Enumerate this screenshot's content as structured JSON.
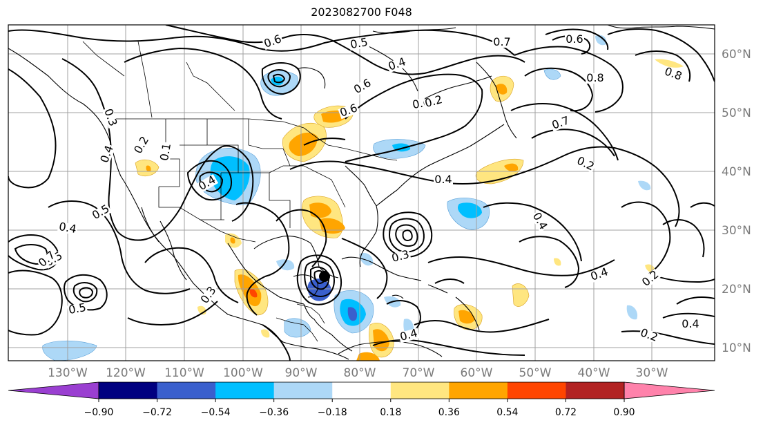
{
  "title": "2023082700 F048",
  "map": {
    "lon_labels": [
      "130°W",
      "120°W",
      "110°W",
      "100°W",
      "90°W",
      "80°W",
      "70°W",
      "60°W",
      "50°W",
      "40°W",
      "30°W"
    ],
    "lat_labels": [
      "60°N",
      "50°N",
      "40°N",
      "30°N",
      "20°N",
      "10°N"
    ],
    "contour_labels": [
      "0.6",
      "0.5",
      "0.4",
      "0.6",
      "0.7",
      "0.6",
      "0.8",
      "0.2",
      "0.8",
      "0.7",
      "0.2",
      "0.3",
      "0.4",
      "0.6",
      "0.1",
      "0.4",
      "0.5",
      "0.4",
      "0.5",
      "0.5",
      "0.3",
      "0.4",
      "0.2",
      "0.4",
      "0.4",
      "0.3",
      "0.4",
      "0.2",
      "0.4",
      "0.2",
      "0.7",
      "0.6"
    ]
  },
  "colorbar": {
    "colors": [
      "#9a3fd1",
      "#000080",
      "#3a5fcd",
      "#00bfff",
      "#add8f7",
      "#ffffff",
      "#ffe680",
      "#ffa500",
      "#ff4500",
      "#b22222",
      "#ff82ab"
    ],
    "tick_labels": [
      "−0.90",
      "−0.72",
      "−0.54",
      "−0.36",
      "−0.18",
      "0.18",
      "0.36",
      "0.54",
      "0.72",
      "0.90"
    ]
  }
}
